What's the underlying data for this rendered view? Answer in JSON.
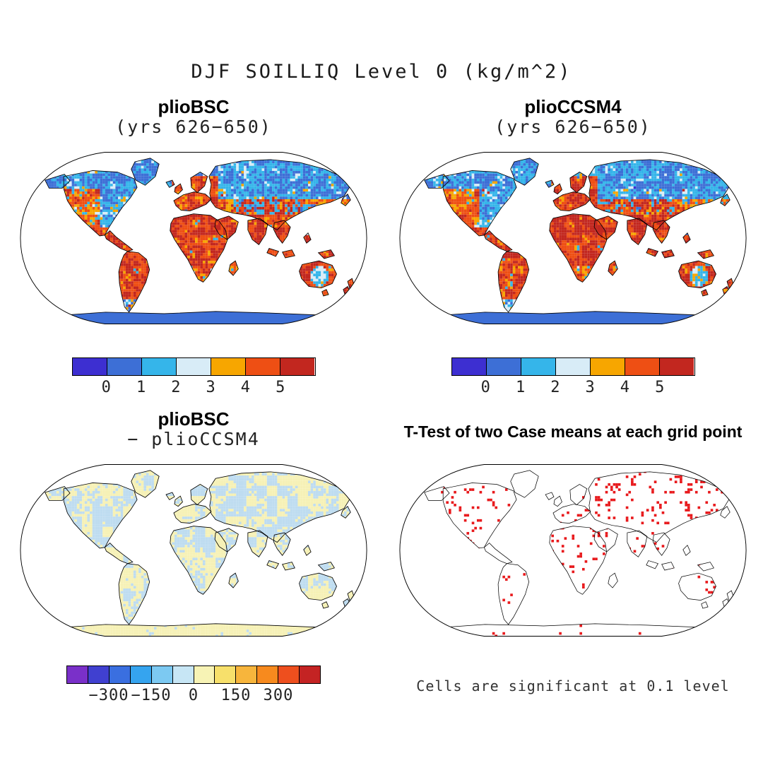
{
  "figure": {
    "title": "DJF SOILLIQ Level 0 (kg/m^2)",
    "background": "#ffffff"
  },
  "panels": {
    "topLeft": {
      "title": "plioBSC",
      "subtitle": "(yrs 626−650)"
    },
    "topRight": {
      "title": "plioCCSM4",
      "subtitle": "(yrs 626−650)"
    },
    "bottomLeft": {
      "title": "plioBSC",
      "subtitle": "− plioCCSM4"
    },
    "bottomRight": {
      "title": "T-Test of two Case means at each grid point",
      "caption": "Cells are significant at 0.1 level"
    }
  },
  "colorbars": {
    "mean": {
      "colors": [
        "#3d2fd1",
        "#3d6fd6",
        "#35b5ea",
        "#d8ecf7",
        "#f7a600",
        "#ee4f14",
        "#c2271f"
      ],
      "ticks": [
        "0",
        "1",
        "2",
        "3",
        "4",
        "5"
      ]
    },
    "diff": {
      "colors": [
        "#7a30c9",
        "#4040d0",
        "#3a6fe0",
        "#35a4ef",
        "#7cc9f2",
        "#c7e6f5",
        "#f7f3b5",
        "#f7e06b",
        "#f7b53c",
        "#f78a1e",
        "#ee4f1e",
        "#c42323"
      ],
      "ticks": [
        "−300",
        "−150",
        "0",
        "150",
        "300"
      ]
    }
  },
  "diff_map": {
    "negative": "#bedcf0",
    "positive": "#f6f1b6"
  },
  "significance": {
    "cell_color": "#e8191c"
  },
  "chart_data": [
    {
      "type": "heatmap",
      "panel": "top-left",
      "title": "plioBSC (yrs 626−650)",
      "variable": "SOILLIQ",
      "season": "DJF",
      "level": 0,
      "units": "kg/m^2",
      "projection": "global map (Robinson-like)",
      "color_levels": [
        0,
        1,
        2,
        3,
        4,
        5
      ],
      "palette": [
        "#3d2fd1",
        "#3d6fd6",
        "#35b5ea",
        "#d8ecf7",
        "#f7a600",
        "#ee4f14",
        "#c2271f"
      ],
      "legend_position": "below",
      "notes": "Filled land grid cells; oceans white; Antarctica mostly mid-blue; Europe/Africa/South America/India predominantly red-orange; high northern latitudes predominantly blue."
    },
    {
      "type": "heatmap",
      "panel": "top-right",
      "title": "plioCCSM4 (yrs 626−650)",
      "variable": "SOILLIQ",
      "season": "DJF",
      "level": 0,
      "units": "kg/m^2",
      "projection": "global map (Robinson-like)",
      "color_levels": [
        0,
        1,
        2,
        3,
        4,
        5
      ],
      "palette": [
        "#3d2fd1",
        "#3d6fd6",
        "#35b5ea",
        "#d8ecf7",
        "#f7a600",
        "#ee4f14",
        "#c2271f"
      ],
      "legend_position": "below",
      "notes": "Pattern very similar to plioBSC panel."
    },
    {
      "type": "heatmap",
      "panel": "bottom-left",
      "title": "plioBSC − plioCCSM4",
      "units": "kg/m^2",
      "color_levels": [
        -300,
        -150,
        0,
        150,
        300
      ],
      "palette": [
        "#7a30c9",
        "#4040d0",
        "#3a6fe0",
        "#35a4ef",
        "#7cc9f2",
        "#c7e6f5",
        "#f7f3b5",
        "#f7e06b",
        "#f7b53c",
        "#f78a1e",
        "#ee4f1e",
        "#c42323"
      ],
      "legend_position": "below",
      "notes": "Differences are small: land is a patchwork of pale blue (slightly negative) and pale yellow (slightly positive); Antarctica mostly pale yellow."
    },
    {
      "type": "heatmap",
      "panel": "bottom-right",
      "title": "T-Test of two Case means at each grid point",
      "annotation": "Cells are significant at 0.1 level",
      "significant_color": "#e8191c",
      "notes": "Land outlines only; scattered red cells mark significance, densest over Russia/central Asia, northern Africa, Canada and western North America."
    }
  ]
}
